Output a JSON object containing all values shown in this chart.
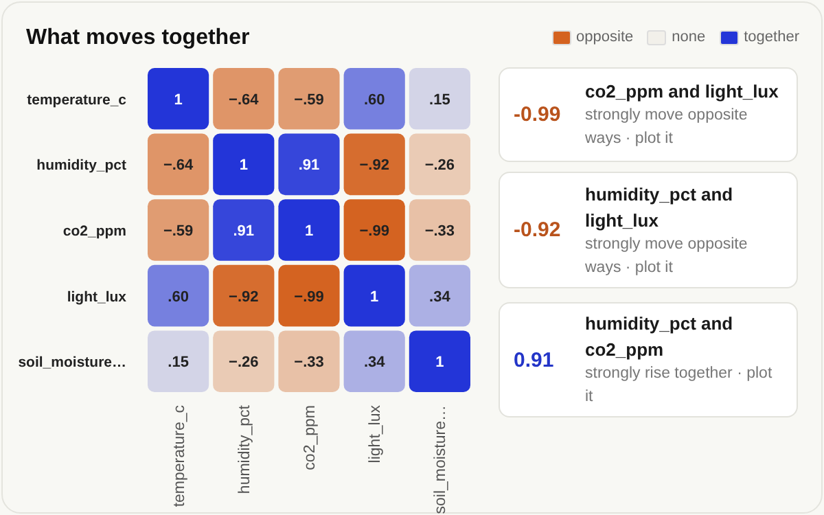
{
  "chart_data": [
    {
      "type": "heatmap",
      "title": "What moves together",
      "categories": [
        "temperature_c",
        "humidity_pct",
        "co2_ppm",
        "light_lux",
        "soil_moisture…"
      ],
      "y_categories": [
        "temperature_c",
        "humidity_pct",
        "co2_ppm",
        "light_lux",
        "soil_moisture…"
      ],
      "cells": [
        [
          1,
          -0.64,
          -0.59,
          0.6,
          0.15
        ],
        [
          -0.64,
          1,
          0.91,
          -0.92,
          -0.26
        ],
        [
          -0.59,
          0.91,
          1,
          -0.99,
          -0.33
        ],
        [
          0.6,
          -0.92,
          -0.99,
          1,
          0.34
        ],
        [
          0.15,
          -0.26,
          -0.33,
          0.34,
          1
        ]
      ],
      "cell_labels": [
        [
          "1",
          "−.64",
          "−.59",
          ".60",
          ".15"
        ],
        [
          "−.64",
          "1",
          ".91",
          "−.92",
          "−.26"
        ],
        [
          "−.59",
          ".91",
          "1",
          "−.99",
          "−.33"
        ],
        [
          ".60",
          "−.92",
          "−.99",
          "1",
          ".34"
        ],
        [
          ".15",
          "−.26",
          "−.33",
          ".34",
          "1"
        ]
      ],
      "annotations": [
        "opposite",
        "none",
        "together"
      ],
      "colors": [
        "#d4621f",
        "#f2f0ea",
        "#2335d8"
      ]
    },
    {
      "type": "other",
      "annotations": [
        "-0.99",
        "co2_ppm and light_lux",
        "strongly move opposite ways · plot it",
        "-0.92",
        "humidity_pct and light_lux",
        "strongly move opposite ways · plot it",
        "0.91",
        "humidity_pct and co2_ppm",
        "strongly rise together · plot it"
      ],
      "colors": [
        "#b9531c",
        "#b9531c",
        "#2335c8"
      ]
    }
  ]
}
